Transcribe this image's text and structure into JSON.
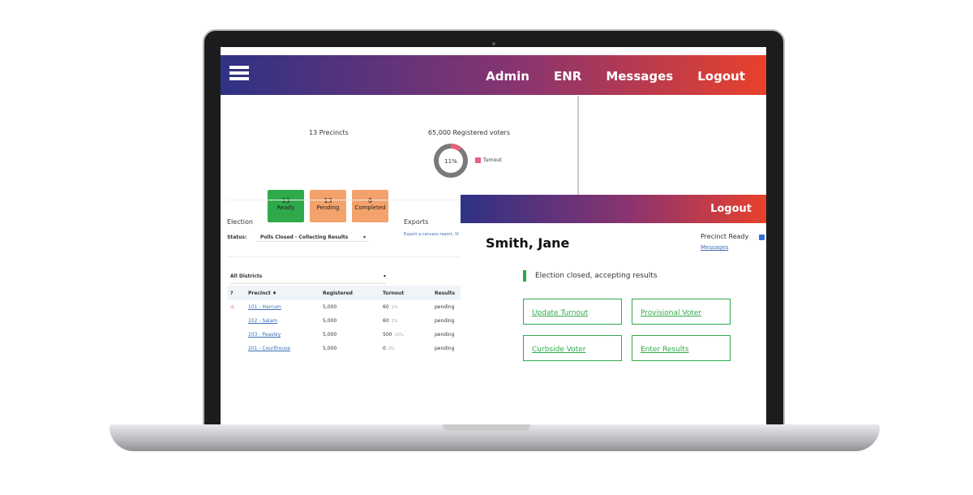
{
  "nav": {
    "items": [
      "Admin",
      "ENR",
      "Messages",
      "Logout"
    ]
  },
  "summary": {
    "precincts_title": "13 Precincts",
    "tiles": [
      {
        "count": "13",
        "label": "Ready",
        "color": "#2faa4a"
      },
      {
        "count": "13",
        "label": "Pending",
        "color": "#f4a26b"
      },
      {
        "count": "0",
        "label": "Completed",
        "color": "#f4a26b"
      }
    ],
    "voters_title": "65,000 Registered voters",
    "donut": {
      "value": 11,
      "label": "11%",
      "color": "#e8607c"
    },
    "legend": "Turnout"
  },
  "election": {
    "title": "Election",
    "status_label": "Status:",
    "status_value": "Polls Closed - Collecting Results"
  },
  "exports": {
    "title": "Exports",
    "link": "Export a canvass report, VI"
  },
  "table": {
    "filter": "All Districts",
    "header": [
      "?",
      "Precinct ♦",
      "Registered",
      "Turnout",
      "Results"
    ],
    "rows": [
      {
        "warn": "⚠",
        "precinct": "101 - Harcum",
        "registered": "5,000",
        "turnout": "60",
        "pct": "1%",
        "results": "pending"
      },
      {
        "warn": "",
        "precinct": "102 - Salam",
        "registered": "5,000",
        "turnout": "60",
        "pct": "1%",
        "results": "pending"
      },
      {
        "warn": "",
        "precinct": "103 - Peasley",
        "registered": "5,000",
        "turnout": "500",
        "pct": "10%",
        "results": "pending"
      },
      {
        "warn": "",
        "precinct": "201 - Courthouse",
        "registered": "5,000",
        "turnout": "0",
        "pct": "0%",
        "results": "pending"
      }
    ]
  },
  "overlay": {
    "logout": "Logout",
    "name": "Smith, Jane",
    "precinct_ready": "Precinct Ready",
    "messages": "Messages",
    "status": "Election closed, accepting results",
    "buttons": [
      "Update Turnout",
      "Provisional Voter",
      "Curbside Voter",
      "Enter Results"
    ]
  }
}
